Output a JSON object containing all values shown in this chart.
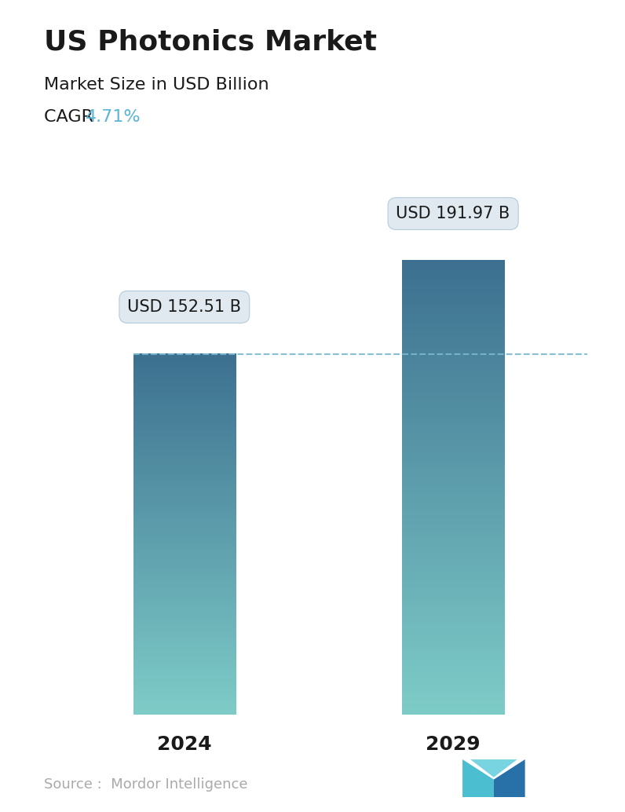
{
  "title": "US Photonics Market",
  "subtitle": "Market Size in USD Billion",
  "cagr_label": "CAGR ",
  "cagr_value": "4.71%",
  "cagr_color": "#5ab4d6",
  "categories": [
    "2024",
    "2029"
  ],
  "values": [
    152.51,
    191.97
  ],
  "bar_labels": [
    "USD 152.51 B",
    "USD 191.97 B"
  ],
  "bar_top_color": "#3d7090",
  "bar_bottom_color": "#7eccc8",
  "dashed_line_color": "#7ab8d0",
  "dashed_line_value": 152.51,
  "source_text": "Source :  Mordor Intelligence",
  "source_color": "#aaaaaa",
  "background_color": "#ffffff",
  "title_fontsize": 26,
  "subtitle_fontsize": 16,
  "cagr_fontsize": 16,
  "bar_label_fontsize": 15,
  "xlabel_fontsize": 18,
  "source_fontsize": 13,
  "ylim": [
    0,
    230
  ],
  "bar_width": 0.38,
  "positions": [
    0,
    1
  ],
  "xlim": [
    -0.5,
    1.5
  ]
}
